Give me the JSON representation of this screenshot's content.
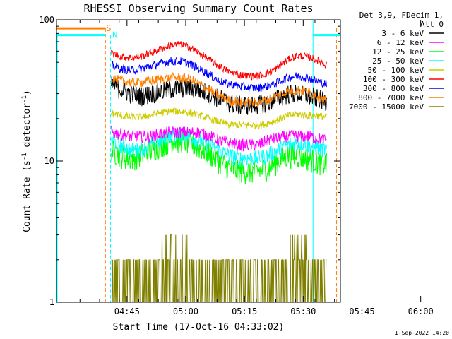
{
  "chart_data": {
    "type": "line",
    "title": "RHESSI Observing Summary Count Rates",
    "xlabel": "Start Time (17-Oct-16 04:33:02)",
    "ylabel_main": "Count Rate (s",
    "ylabel_sup1": "-1",
    "ylabel_mid": " detector",
    "ylabel_sup2": "-1",
    "ylabel_end": ")",
    "y_scale": "log",
    "ylim": [
      1,
      100
    ],
    "xlim_minutes": [
      -6,
      66.5
    ],
    "x_ticks": [
      {
        "label": "04:45",
        "minutes": 12
      },
      {
        "label": "05:00",
        "minutes": 27
      },
      {
        "label": "05:15",
        "minutes": 42
      },
      {
        "label": "05:30",
        "minutes": 57
      },
      {
        "label": "05:45",
        "minutes": 72
      },
      {
        "label": "06:00",
        "minutes": 87
      }
    ],
    "y_ticks": [
      {
        "label": "1",
        "value": 1
      },
      {
        "label": "10",
        "value": 10
      },
      {
        "label": "100",
        "value": 100
      }
    ],
    "data_start_minute": 8,
    "data_end_minute": 63,
    "series": [
      {
        "name": "3 - 6 keV",
        "color": "#000000",
        "values": [
          35,
          32,
          30,
          29,
          30,
          31,
          32,
          33,
          33,
          32,
          30,
          28,
          26,
          25,
          25,
          25,
          26,
          28,
          30,
          30,
          29,
          28,
          26
        ]
      },
      {
        "name": "6 - 12 keV",
        "color": "#ff00ff",
        "values": [
          16,
          15.5,
          15,
          15,
          15,
          15.5,
          16,
          16,
          16,
          16,
          15,
          14,
          13.5,
          13,
          13,
          13,
          14,
          14.5,
          15,
          15,
          15,
          14.5,
          14
        ]
      },
      {
        "name": "12 - 25 keV",
        "color": "#00ff00",
        "values": [
          12,
          11,
          10.5,
          11,
          12,
          13,
          14,
          14,
          13.5,
          12.5,
          11.5,
          10,
          9,
          8.5,
          8.5,
          8.5,
          9,
          10,
          11,
          11,
          10.5,
          10,
          9.5
        ]
      },
      {
        "name": "25 - 50 keV",
        "color": "#00ffff",
        "values": [
          14,
          13,
          12,
          12,
          13,
          14,
          15,
          15.5,
          15,
          14,
          13,
          12,
          11,
          10.5,
          10.5,
          10.5,
          11,
          12,
          13,
          13.5,
          13,
          12.5,
          12
        ]
      },
      {
        "name": "50 - 100 keV",
        "color": "#cccc00",
        "values": [
          22,
          21,
          20.5,
          20.5,
          21,
          22,
          22.5,
          22.5,
          22,
          21,
          20,
          19,
          18,
          18,
          18,
          18,
          18.5,
          19.5,
          21,
          21.5,
          21,
          21,
          20.5
        ]
      },
      {
        "name": "100 - 300 keV",
        "color": "#ff0000",
        "values": [
          58,
          55,
          54,
          55,
          58,
          62,
          66,
          67,
          64,
          58,
          52,
          47,
          43,
          41,
          40,
          40,
          42,
          46,
          52,
          56,
          55,
          52,
          48
        ]
      },
      {
        "name": "300 - 800 keV",
        "color": "#0000ff",
        "values": [
          48,
          45,
          44,
          45,
          47,
          49,
          51,
          51,
          49,
          45,
          41,
          37,
          35,
          34,
          33,
          33,
          34,
          36,
          39,
          40,
          39,
          37,
          35
        ]
      },
      {
        "name": "800 - 7000 keV",
        "color": "#ff8000",
        "values": [
          39,
          37,
          36,
          36,
          37,
          38,
          39,
          39,
          38,
          35,
          32,
          29,
          27,
          26,
          26,
          26,
          27,
          29,
          31,
          32,
          31,
          29,
          27
        ]
      },
      {
        "name": "7000 - 15000 keV",
        "color": "#808000",
        "values": [
          1.5,
          1.7,
          1.8,
          2.0,
          2.0,
          2.2,
          2.4,
          2.5,
          2.2,
          2.0,
          1.6,
          1.5,
          1.4,
          1.4,
          1.4,
          1.5,
          1.6,
          1.8,
          2.2,
          2.5,
          2.3,
          2.0,
          1.8
        ]
      }
    ],
    "markers": [
      {
        "label": "S",
        "color": "#ff8000",
        "bar_minutes": [
          -6,
          6.5
        ],
        "bar_value": 87,
        "lines_minutes": [
          6.5,
          65.5
        ],
        "dashed": true
      },
      {
        "label": "N",
        "color": "#00ffff",
        "bar_minutes": [
          -6,
          6.5
        ],
        "bar_value": 78,
        "bar2_minutes": [
          59.5,
          66.5
        ],
        "lines_minutes": [
          7.8,
          59.5
        ],
        "line_left_minutes": -6
      }
    ],
    "legend": {
      "placement": "right",
      "header_lines": [
        "Det 3,9, FDecim 1,",
        "Att 0"
      ]
    },
    "timestamp": "1-Sep-2022 14:20"
  }
}
